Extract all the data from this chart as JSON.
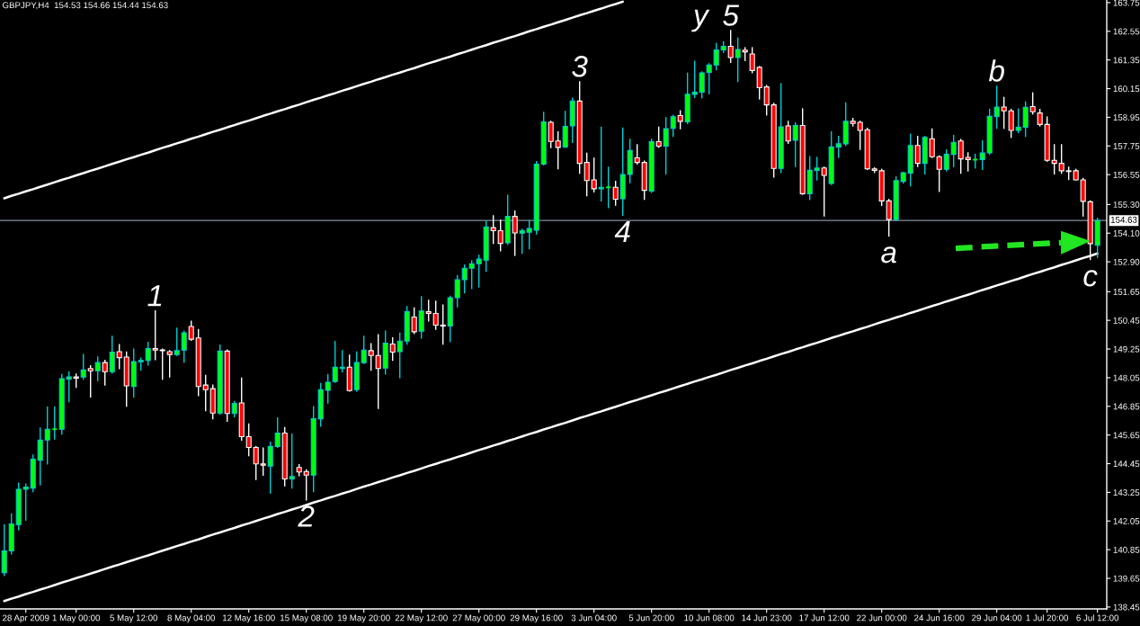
{
  "chart_data": {
    "type": "candlestick",
    "title": "GBPJPY,H4  154.53 154.66 154.44 154.63",
    "categories": [
      null,
      null,
      null,
      "28 Apr 2009",
      null,
      null,
      null,
      null,
      null,
      null,
      "1 May 00:00",
      null,
      null,
      null,
      null,
      null,
      null,
      null,
      "5 May 12:00",
      null,
      null,
      null,
      null,
      null,
      null,
      null,
      "8 May 04:00",
      null,
      null,
      null,
      null,
      null,
      null,
      null,
      "12 May 16:00",
      null,
      null,
      null,
      null,
      null,
      null,
      null,
      "15 May 08:00",
      null,
      null,
      null,
      null,
      null,
      null,
      null,
      "19 May 20:00",
      null,
      null,
      null,
      null,
      null,
      null,
      null,
      "22 May 12:00",
      null,
      null,
      null,
      null,
      null,
      null,
      null,
      "27 May 00:00",
      null,
      null,
      null,
      null,
      null,
      null,
      null,
      "29 May 16:00",
      null,
      null,
      null,
      null,
      null,
      null,
      null,
      "3 Jun 04:00",
      null,
      null,
      null,
      null,
      null,
      null,
      null,
      "5 Jun 20:00",
      null,
      null,
      null,
      null,
      null,
      null,
      null,
      "10 Jun 08:00",
      null,
      null,
      null,
      null,
      null,
      null,
      null,
      "14 Jun 23:00",
      null,
      null,
      null,
      null,
      null,
      null,
      null,
      "17 Jun 12:00",
      null,
      null,
      null,
      null,
      null,
      null,
      null,
      "22 Jun 00:00",
      null,
      null,
      null,
      null,
      null,
      null,
      null,
      "24 Jun 16:00",
      null,
      null,
      null,
      null,
      null,
      null,
      null,
      "29 Jun 04:00",
      null,
      null,
      null,
      null,
      null,
      null,
      "1 Jul 20:00",
      null,
      null,
      null,
      null,
      null,
      null,
      "6 Jul 12:00"
    ],
    "ohlc": [
      [
        139.89,
        141.88,
        139.77,
        140.8
      ],
      [
        140.8,
        142.34,
        140.67,
        141.93
      ],
      [
        141.9,
        143.63,
        141.68,
        143.38
      ],
      [
        143.38,
        143.6,
        142.09,
        143.47
      ],
      [
        143.43,
        144.81,
        143.28,
        144.64
      ],
      [
        144.59,
        145.94,
        143.56,
        145.44
      ],
      [
        145.44,
        146.82,
        144.44,
        145.89
      ],
      [
        145.89,
        146.82,
        145.48,
        145.89
      ],
      [
        145.89,
        148.18,
        145.69,
        148.01
      ],
      [
        147.99,
        148.28,
        147.05,
        148.08
      ],
      [
        148.08,
        148.2,
        147.65,
        148.03
      ],
      [
        148.08,
        149.02,
        147.99,
        148.37
      ],
      [
        148.43,
        148.55,
        147.24,
        148.34
      ],
      [
        148.34,
        148.91,
        147.93,
        148.68
      ],
      [
        148.68,
        148.77,
        147.74,
        148.3
      ],
      [
        148.3,
        149.78,
        148.24,
        149.12
      ],
      [
        149.14,
        149.43,
        148.43,
        148.89
      ],
      [
        148.91,
        149.12,
        146.86,
        147.71
      ],
      [
        147.68,
        149.24,
        147.24,
        148.72
      ],
      [
        148.72,
        148.87,
        148.37,
        148.77
      ],
      [
        148.77,
        149.53,
        148.58,
        149.27
      ],
      [
        149.27,
        150.84,
        148.81,
        149.21
      ],
      [
        149.21,
        149.24,
        147.99,
        149.18
      ],
      [
        149.14,
        149.18,
        148.08,
        149.02
      ],
      [
        149.02,
        150.12,
        148.99,
        149.18
      ],
      [
        149.21,
        150.0,
        148.7,
        149.93
      ],
      [
        150.19,
        150.41,
        149.62,
        149.66
      ],
      [
        149.71,
        150.06,
        147.3,
        147.68
      ],
      [
        147.74,
        148.14,
        146.67,
        147.55
      ],
      [
        147.59,
        147.74,
        146.33,
        146.57
      ],
      [
        146.57,
        149.41,
        146.52,
        149.16
      ],
      [
        149.16,
        149.21,
        146.23,
        146.55
      ],
      [
        146.55,
        147.05,
        146.42,
        146.97
      ],
      [
        146.99,
        148.03,
        145.44,
        145.58
      ],
      [
        145.58,
        146.11,
        144.79,
        145.13
      ],
      [
        145.13,
        145.17,
        143.79,
        144.44
      ],
      [
        144.44,
        145.1,
        143.97,
        144.39
      ],
      [
        144.35,
        145.35,
        143.22,
        145.17
      ],
      [
        145.17,
        146.36,
        145.14,
        145.73
      ],
      [
        145.73,
        145.96,
        143.53,
        143.81
      ],
      [
        143.81,
        145.69,
        143.43,
        143.91
      ],
      [
        144.29,
        144.41,
        143.95,
        144.1
      ],
      [
        144.12,
        144.19,
        142.93,
        143.97
      ],
      [
        143.97,
        146.83,
        143.28,
        146.33
      ],
      [
        146.33,
        147.8,
        146.02,
        147.55
      ],
      [
        147.52,
        148.18,
        146.99,
        147.86
      ],
      [
        147.89,
        149.56,
        147.86,
        148.49
      ],
      [
        148.43,
        149.18,
        148.3,
        148.49
      ],
      [
        148.49,
        148.99,
        147.49,
        147.51
      ],
      [
        147.55,
        149.12,
        147.49,
        148.68
      ],
      [
        148.68,
        149.78,
        148.65,
        149.2
      ],
      [
        149.18,
        149.47,
        148.36,
        148.98
      ],
      [
        148.98,
        149.85,
        146.76,
        148.43
      ],
      [
        148.45,
        150.0,
        148.2,
        149.49
      ],
      [
        149.46,
        149.71,
        148.78,
        149.12
      ],
      [
        149.14,
        149.91,
        148.05,
        149.58
      ],
      [
        149.58,
        151.02,
        149.46,
        150.81
      ],
      [
        150.59,
        150.97,
        149.9,
        149.97
      ],
      [
        150.0,
        151.44,
        149.71,
        150.84
      ],
      [
        150.81,
        151.29,
        150.43,
        150.74
      ],
      [
        150.74,
        151.25,
        150.08,
        150.25
      ],
      [
        150.25,
        151.09,
        149.46,
        150.21
      ],
      [
        150.21,
        151.46,
        149.56,
        151.4
      ],
      [
        151.4,
        152.32,
        151.02,
        152.15
      ],
      [
        152.15,
        152.76,
        151.6,
        152.63
      ],
      [
        152.63,
        152.94,
        151.78,
        152.82
      ],
      [
        152.82,
        153.17,
        151.85,
        153.01
      ],
      [
        152.97,
        154.6,
        152.51,
        154.36
      ],
      [
        154.33,
        154.83,
        153.67,
        154.2
      ],
      [
        154.2,
        154.64,
        153.36,
        153.67
      ],
      [
        153.7,
        155.68,
        153.64,
        154.8
      ],
      [
        154.8,
        155.02,
        153.17,
        154.11
      ],
      [
        154.1,
        154.26,
        153.26,
        154.2
      ],
      [
        154.14,
        154.63,
        153.45,
        154.29
      ],
      [
        154.22,
        157.09,
        154.07,
        156.99
      ],
      [
        156.99,
        159.16,
        156.96,
        158.76
      ],
      [
        158.74,
        158.78,
        157.68,
        157.94
      ],
      [
        157.96,
        158.34,
        156.8,
        157.69
      ],
      [
        157.71,
        159.19,
        157.69,
        158.57
      ],
      [
        158.59,
        159.75,
        157.9,
        159.63
      ],
      [
        159.63,
        160.44,
        156.61,
        157.02
      ],
      [
        157.06,
        157.44,
        155.67,
        156.3
      ],
      [
        156.33,
        157.24,
        155.83,
        155.96
      ],
      [
        155.96,
        158.53,
        155.45,
        156.02
      ],
      [
        156.02,
        156.86,
        155.17,
        156.02
      ],
      [
        156.02,
        156.27,
        155.27,
        155.52
      ],
      [
        155.54,
        158.5,
        154.85,
        156.55
      ],
      [
        156.56,
        158.03,
        156.21,
        157.56
      ],
      [
        157.25,
        157.8,
        157.0,
        157.06
      ],
      [
        157.06,
        157.11,
        155.52,
        155.89
      ],
      [
        155.86,
        158.03,
        155.81,
        157.93
      ],
      [
        157.93,
        158.53,
        157.69,
        157.74
      ],
      [
        157.74,
        158.93,
        156.58,
        158.47
      ],
      [
        158.49,
        159.03,
        158.15,
        158.97
      ],
      [
        159.02,
        159.22,
        158.47,
        158.78
      ],
      [
        158.76,
        160.79,
        158.69,
        159.91
      ],
      [
        159.91,
        161.29,
        159.78,
        160.0
      ],
      [
        160.0,
        160.85,
        159.76,
        160.81
      ],
      [
        160.83,
        161.19,
        159.94,
        161.14
      ],
      [
        161.14,
        162.04,
        160.95,
        161.77
      ],
      [
        161.77,
        162.11,
        161.67,
        161.92
      ],
      [
        161.92,
        162.58,
        161.25,
        161.45
      ],
      [
        161.45,
        162.26,
        160.45,
        161.79
      ],
      [
        161.76,
        161.86,
        161.33,
        161.69
      ],
      [
        161.6,
        161.86,
        160.82,
        160.91
      ],
      [
        161.04,
        161.07,
        159.72,
        160.19
      ],
      [
        160.22,
        160.28,
        159.05,
        159.47
      ],
      [
        159.47,
        159.53,
        156.45,
        156.81
      ],
      [
        156.81,
        160.35,
        156.64,
        158.55
      ],
      [
        158.59,
        158.78,
        157.86,
        157.96
      ],
      [
        157.99,
        158.71,
        156.89,
        158.61
      ],
      [
        158.61,
        159.3,
        155.73,
        155.75
      ],
      [
        155.75,
        157.3,
        155.51,
        156.73
      ],
      [
        156.73,
        157.27,
        156.33,
        156.83
      ],
      [
        156.83,
        156.86,
        154.82,
        156.52
      ],
      [
        156.18,
        158.34,
        156.14,
        157.71
      ],
      [
        157.71,
        158.15,
        157.27,
        157.84
      ],
      [
        157.84,
        159.55,
        157.77,
        158.78
      ],
      [
        158.78,
        158.9,
        158.59,
        158.69
      ],
      [
        158.74,
        158.78,
        157.61,
        158.4
      ],
      [
        158.43,
        158.49,
        156.77,
        156.79
      ],
      [
        156.79,
        156.83,
        156.64,
        156.73
      ],
      [
        156.71,
        156.77,
        155.26,
        155.45
      ],
      [
        155.45,
        155.51,
        153.98,
        154.67
      ],
      [
        154.67,
        156.45,
        154.63,
        156.3
      ],
      [
        156.27,
        156.64,
        156.2,
        156.63
      ],
      [
        156.61,
        158.24,
        156.08,
        157.77
      ],
      [
        157.77,
        158.15,
        156.89,
        157.02
      ],
      [
        157.02,
        158.15,
        156.58,
        158.11
      ],
      [
        158.05,
        158.46,
        157.27,
        157.3
      ],
      [
        157.3,
        157.33,
        155.85,
        156.77
      ],
      [
        156.77,
        157.58,
        156.71,
        157.4
      ],
      [
        157.4,
        158.19,
        156.89,
        157.9
      ],
      [
        157.96,
        158.02,
        156.61,
        157.21
      ],
      [
        157.27,
        157.46,
        156.71,
        157.18
      ],
      [
        157.18,
        157.4,
        156.83,
        157.18
      ],
      [
        157.18,
        157.96,
        156.77,
        157.46
      ],
      [
        157.46,
        159.28,
        157.4,
        158.99
      ],
      [
        158.99,
        160.25,
        158.49,
        159.38
      ],
      [
        159.38,
        159.78,
        158.49,
        159.22
      ],
      [
        159.22,
        159.28,
        158.11,
        158.4
      ],
      [
        158.4,
        159.3,
        158.31,
        158.53
      ],
      [
        158.53,
        159.59,
        158.15,
        159.37
      ],
      [
        159.4,
        159.97,
        159.09,
        159.18
      ],
      [
        159.13,
        159.28,
        158.59,
        158.65
      ],
      [
        158.65,
        158.96,
        157.11,
        157.15
      ],
      [
        157.15,
        157.8,
        156.58,
        157.02
      ],
      [
        157.02,
        157.8,
        156.61,
        156.71
      ],
      [
        156.71,
        156.86,
        156.35,
        156.68
      ],
      [
        156.71,
        156.77,
        156.33,
        156.33
      ],
      [
        156.33,
        156.39,
        154.82,
        155.43
      ],
      [
        155.41,
        155.45,
        153.0,
        153.66
      ],
      [
        153.59,
        154.72,
        153.09,
        154.63
      ]
    ],
    "colors": [
      "#00ff00",
      "#00ff00",
      "#00ff00",
      "#00ff00",
      "#00ff00",
      "#00ff00",
      "#00ff00",
      "#00ff00",
      "#00ff00",
      "#00ff00",
      "#ff0000",
      "#00ff00",
      "#ff0000",
      "#00ff00",
      "#ff0000",
      "#00ff00",
      "#ff0000",
      "#ff0000",
      "#00ff00",
      "#00ff00",
      "#00ff00",
      "#ff0000",
      "#ff0000",
      "#ff0000",
      "#00ff00",
      "#00ff00",
      "#ff0000",
      "#ff0000",
      "#ff0000",
      "#ff0000",
      "#00ff00",
      "#ff0000",
      "#00ff00",
      "#ff0000",
      "#ff0000",
      "#ff0000",
      "#ff0000",
      "#00ff00",
      "#00ff00",
      "#ff0000",
      "#00ff00",
      "#ff0000",
      "#ff0000",
      "#00ff00",
      "#00ff00",
      "#00ff00",
      "#00ff00",
      "#00ff00",
      "#ff0000",
      "#00ff00",
      "#00ff00",
      "#ff0000",
      "#ff0000",
      "#00ff00",
      "#ff0000",
      "#00ff00",
      "#00ff00",
      "#ff0000",
      "#00ff00",
      "#ff0000",
      "#ff0000",
      "#ff0000",
      "#00ff00",
      "#00ff00",
      "#00ff00",
      "#00ff00",
      "#00ff00",
      "#00ff00",
      "#ff0000",
      "#ff0000",
      "#00ff00",
      "#ff0000",
      "#00ff00",
      "#00ff00",
      "#00ff00",
      "#00ff00",
      "#ff0000",
      "#ff0000",
      "#00ff00",
      "#00ff00",
      "#ff0000",
      "#ff0000",
      "#ff0000",
      "#00ff00",
      "#00ff00",
      "#ff0000",
      "#00ff00",
      "#00ff00",
      "#ff0000",
      "#ff0000",
      "#00ff00",
      "#ff0000",
      "#00ff00",
      "#00ff00",
      "#ff0000",
      "#00ff00",
      "#00ff00",
      "#00ff00",
      "#00ff00",
      "#00ff00",
      "#00ff00",
      "#ff0000",
      "#00ff00",
      "#ff0000",
      "#ff0000",
      "#ff0000",
      "#ff0000",
      "#ff0000",
      "#00ff00",
      "#ff0000",
      "#00ff00",
      "#ff0000",
      "#00ff00",
      "#00ff00",
      "#ff0000",
      "#00ff00",
      "#00ff00",
      "#00ff00",
      "#ff0000",
      "#ff0000",
      "#ff0000",
      "#ff0000",
      "#ff0000",
      "#ff0000",
      "#00ff00",
      "#00ff00",
      "#00ff00",
      "#ff0000",
      "#00ff00",
      "#ff0000",
      "#ff0000",
      "#00ff00",
      "#00ff00",
      "#ff0000",
      "#ff0000",
      "#00ff00",
      "#00ff00",
      "#00ff00",
      "#00ff00",
      "#ff0000",
      "#ff0000",
      "#00ff00",
      "#00ff00",
      "#ff0000",
      "#ff0000",
      "#ff0000",
      "#ff0000",
      "#ff0000",
      "#ff0000",
      "#ff0000",
      "#ff0000",
      "#ff0000",
      "#00ff00"
    ],
    "series": [
      {
        "type": "line",
        "color": "#ffffff",
        "values": [
          138.7,
          138.8,
          138.89,
          138.99,
          139.08,
          139.18,
          139.27,
          139.37,
          139.47,
          139.56,
          139.66,
          139.75,
          139.85,
          139.94,
          140.04,
          140.14,
          140.23,
          140.33,
          140.42,
          140.52,
          140.61,
          140.71,
          140.81,
          140.9,
          141.0,
          141.09,
          141.19,
          141.28,
          141.38,
          141.48,
          141.57,
          141.67,
          141.76,
          141.86,
          141.95,
          142.05,
          142.15,
          142.24,
          142.34,
          142.43,
          142.53,
          142.62,
          142.72,
          142.82,
          142.91,
          143.01,
          143.1,
          143.2,
          143.29,
          143.39,
          143.49,
          143.58,
          143.68,
          143.77,
          143.87,
          143.96,
          144.06,
          144.15,
          144.25,
          144.35,
          144.44,
          144.54,
          144.63,
          144.73,
          144.82,
          144.92,
          145.02,
          145.11,
          145.21,
          145.3,
          145.4,
          145.49,
          145.59,
          145.69,
          145.78,
          145.88,
          145.97,
          146.07,
          146.16,
          146.26,
          146.36,
          146.45,
          146.55,
          146.64,
          146.74,
          146.83,
          146.93,
          147.03,
          147.12,
          147.22,
          147.31,
          147.41,
          147.5,
          147.6,
          147.7,
          147.79,
          147.89,
          147.98,
          148.08,
          148.17,
          148.27,
          148.37,
          148.46,
          148.56,
          148.65,
          148.75,
          148.84,
          148.94,
          149.04,
          149.13,
          149.23,
          149.32,
          149.42,
          149.51,
          149.61,
          149.71,
          149.8,
          149.9,
          149.99,
          150.09,
          150.18,
          150.28,
          150.38,
          150.47,
          150.57,
          150.66,
          150.76,
          150.85,
          150.95,
          151.05,
          151.14,
          151.24,
          151.33,
          151.43,
          151.52,
          151.62,
          151.72,
          151.81,
          151.91,
          152.0,
          152.1,
          152.19,
          152.29,
          152.39,
          152.48,
          152.58,
          152.67,
          152.77,
          152.86,
          152.96,
          153.06,
          153.15,
          153.25
        ]
      },
      {
        "type": "line",
        "color": "#ffffff",
        "values": [
          155.56,
          155.66,
          155.75,
          155.85,
          155.94,
          156.04,
          156.13,
          156.23,
          156.33,
          156.42,
          156.52,
          156.61,
          156.71,
          156.8,
          156.9,
          157.0,
          157.09,
          157.19,
          157.28,
          157.38,
          157.47,
          157.57,
          157.67,
          157.76,
          157.86,
          157.95,
          158.05,
          158.14,
          158.24,
          158.34,
          158.43,
          158.53,
          158.62,
          158.72,
          158.81,
          158.91,
          159.01,
          159.1,
          159.2,
          159.29,
          159.39,
          159.48,
          159.58,
          159.68,
          159.77,
          159.87,
          159.96,
          160.06,
          160.15,
          160.25,
          160.35,
          160.44,
          160.54,
          160.63,
          160.73,
          160.82,
          160.92,
          161.01,
          161.11,
          161.21,
          161.3,
          161.4,
          161.49,
          161.59,
          161.68,
          161.78,
          161.88,
          161.97,
          162.07,
          162.16,
          162.26,
          162.35,
          162.45,
          162.55,
          162.64,
          162.74,
          162.83,
          162.93,
          163.02,
          163.12,
          163.22,
          163.31,
          163.41,
          163.5,
          163.6,
          163.69,
          163.79,
          null,
          null,
          null,
          null,
          null,
          null,
          null,
          null,
          null,
          null,
          null,
          null,
          null,
          null,
          null,
          null,
          null,
          null,
          null,
          null,
          null,
          null,
          null,
          null,
          null,
          null,
          null,
          null,
          null,
          null,
          null,
          null,
          null,
          null,
          null,
          null,
          null,
          null,
          null,
          null,
          null,
          null,
          null,
          null,
          null,
          null,
          null,
          null,
          null,
          null,
          null,
          null,
          null,
          null,
          null,
          null,
          null,
          null,
          null,
          null,
          null,
          null,
          null,
          null,
          null,
          null
        ]
      }
    ],
    "ylim": [
      138.37,
      163.86
    ],
    "yticks": [
      138.45,
      139.65,
      140.85,
      142.05,
      143.25,
      144.45,
      145.65,
      146.85,
      148.05,
      149.25,
      150.45,
      151.65,
      {
        "value": 152.9,
        "label": "152.90"
      },
      {
        "value": 154.1,
        "label": "154.10"
      },
      {
        "value": 155.3,
        "label": "155.30"
      },
      156.55,
      157.75,
      158.95,
      160.15,
      161.35,
      162.55,
      163.75
    ],
    "ref_lines": [
      {
        "axis": "y",
        "value": 154.63,
        "label": "154.63",
        "color": "#8090a0"
      }
    ],
    "annotations": [
      {
        "text": "1",
        "y": 150.84
      },
      {
        "text": "2",
        "y": 142.93
      },
      {
        "text": "3",
        "y": 160.44
      },
      {
        "text": "4",
        "y": 154.85
      },
      "y",
      {
        "text": "5",
        "y": 162.58
      },
      {
        "text": "a",
        "y": 153.98
      },
      {
        "text": "b",
        "y": 160.25
      },
      {
        "text": "c",
        "y": 153.0
      }
    ]
  }
}
